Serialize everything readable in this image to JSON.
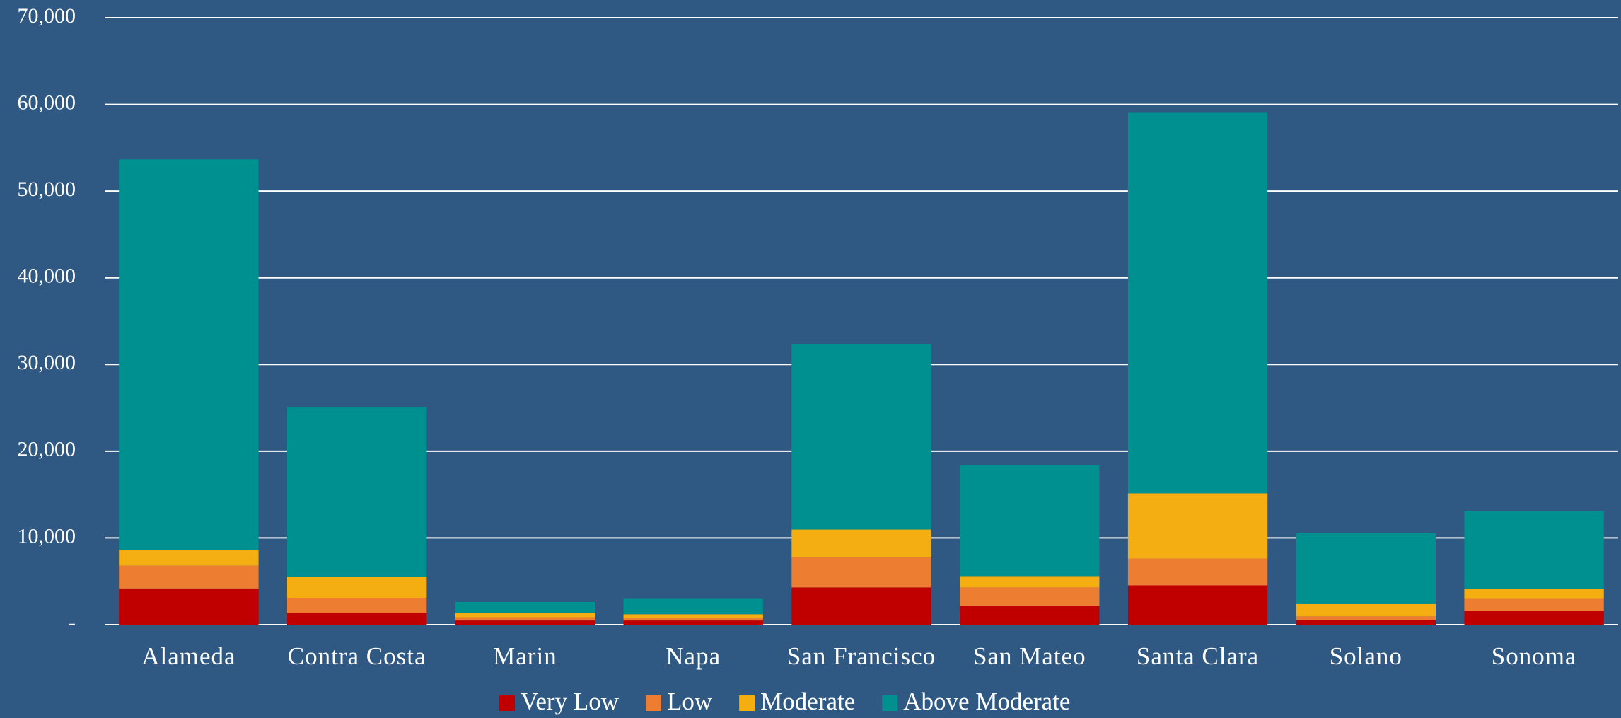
{
  "chart_data": {
    "type": "stacked_bar",
    "categories": [
      "Alameda",
      "Contra Costa",
      "Marin",
      "Napa",
      "San Francisco",
      "San Mateo",
      "Santa Clara",
      "Solano",
      "Sonoma"
    ],
    "series": [
      {
        "name": "Very Low",
        "color": "#c00000",
        "values": [
          4170,
          1310,
          480,
          480,
          4290,
          2150,
          4530,
          500,
          1550
        ]
      },
      {
        "name": "Low",
        "color": "#ed7d31",
        "values": [
          2630,
          1790,
          380,
          320,
          3460,
          2140,
          3100,
          450,
          1430
        ]
      },
      {
        "name": "Moderate",
        "color": "#f5ae12",
        "values": [
          1790,
          2390,
          500,
          400,
          3220,
          1310,
          7510,
          1430,
          1190
        ]
      },
      {
        "name": "Above Moderate",
        "color": "#009090",
        "values": [
          45070,
          19550,
          1260,
          1780,
          21350,
          12760,
          43890,
          8230,
          8950
        ]
      }
    ],
    "ylim": [
      0,
      70000
    ],
    "yticks": [
      {
        "value": 0,
        "label": "-"
      },
      {
        "value": 10000,
        "label": "10,000"
      },
      {
        "value": 20000,
        "label": "20,000"
      },
      {
        "value": 30000,
        "label": "30,000"
      },
      {
        "value": 40000,
        "label": "40,000"
      },
      {
        "value": 50000,
        "label": "50,000"
      },
      {
        "value": 60000,
        "label": "60,000"
      },
      {
        "value": 70000,
        "label": "70,000"
      }
    ],
    "grid": true,
    "legend": "bottom"
  }
}
